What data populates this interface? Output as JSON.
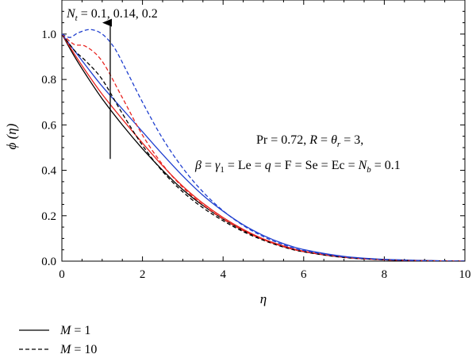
{
  "chart_data": {
    "type": "line",
    "xlabel": "η",
    "ylabel": "ϕ (η)",
    "xlim": [
      0,
      10
    ],
    "ylim": [
      0,
      1.15
    ],
    "x_ticks": [
      0,
      2,
      4,
      6,
      8,
      10
    ],
    "y_ticks": [
      0.0,
      0.2,
      0.4,
      0.6,
      0.8,
      1.0
    ],
    "x_tick_labels": [
      "0",
      "2",
      "4",
      "6",
      "8",
      "10"
    ],
    "y_tick_labels": [
      "0.0",
      "0.2",
      "0.4",
      "0.6",
      "0.8",
      "1.0"
    ],
    "grid": false,
    "annotations": {
      "nt_symbol": "N",
      "nt_sub": "t",
      "nt_values": " = 0.1, 0.14, 0.2",
      "params_line1_a": "Pr = 0.72, ",
      "params_line1_R": "R",
      "params_line1_b": " = ",
      "params_line1_theta": "θ",
      "params_line1_r": "r",
      "params_line1_c": " = 3,",
      "params_line2_beta": "β",
      "params_line2_a": " = ",
      "params_line2_gamma": "γ",
      "params_line2_gsub": "1",
      "params_line2_b": " = Le = ",
      "params_line2_q": "q",
      "params_line2_c": " = F = Se = Ec = ",
      "params_line2_N": "N",
      "params_line2_bsub": "b",
      "params_line2_d": " = 0.1",
      "arrow": {
        "x": 1.2,
        "y_start": 0.45,
        "y_end": 1.05
      }
    },
    "legend": {
      "placement": "below",
      "entries": [
        {
          "label_symbol": "M",
          "label_value": " = 1",
          "style": "solid"
        },
        {
          "label_symbol": "M",
          "label_value": " = 10",
          "style": "dashed"
        }
      ]
    },
    "series": [
      {
        "color": "#000000",
        "style": "solid",
        "x": [
          0,
          0.3,
          0.6,
          1,
          1.5,
          2,
          2.5,
          3,
          3.5,
          4,
          4.5,
          5,
          5.5,
          6,
          7,
          8,
          9,
          10
        ],
        "y": [
          1.0,
          0.905,
          0.82,
          0.715,
          0.6,
          0.495,
          0.4,
          0.315,
          0.245,
          0.185,
          0.135,
          0.095,
          0.064,
          0.042,
          0.017,
          0.006,
          0.002,
          0.0
        ]
      },
      {
        "color": "#e8231f",
        "style": "solid",
        "x": [
          0,
          0.3,
          0.6,
          1,
          1.5,
          2,
          2.5,
          3,
          3.5,
          4,
          4.5,
          5,
          5.5,
          6,
          7,
          8,
          9,
          10
        ],
        "y": [
          1.0,
          0.915,
          0.835,
          0.735,
          0.625,
          0.52,
          0.42,
          0.33,
          0.255,
          0.192,
          0.14,
          0.098,
          0.067,
          0.044,
          0.018,
          0.006,
          0.002,
          0.0
        ]
      },
      {
        "color": "#1f3fcf",
        "style": "solid",
        "x": [
          0,
          0.3,
          0.6,
          1,
          1.5,
          2,
          2.5,
          3,
          3.5,
          4,
          4.5,
          5,
          5.5,
          6,
          7,
          8,
          9,
          10
        ],
        "y": [
          1.0,
          0.93,
          0.86,
          0.77,
          0.67,
          0.57,
          0.47,
          0.375,
          0.29,
          0.22,
          0.16,
          0.113,
          0.077,
          0.051,
          0.021,
          0.008,
          0.003,
          0.0
        ]
      },
      {
        "color": "#000000",
        "style": "dashed",
        "x": [
          0,
          0.3,
          0.6,
          1,
          1.5,
          2,
          2.5,
          3,
          3.5,
          4,
          4.5,
          5,
          5.5,
          6,
          7,
          8,
          9,
          10
        ],
        "y": [
          1.0,
          0.93,
          0.88,
          0.8,
          0.65,
          0.51,
          0.395,
          0.305,
          0.235,
          0.178,
          0.13,
          0.092,
          0.062,
          0.041,
          0.016,
          0.006,
          0.002,
          0.0
        ]
      },
      {
        "color": "#e8231f",
        "style": "dashed",
        "x": [
          0,
          0.3,
          0.6,
          1,
          1.5,
          2,
          2.5,
          3,
          3.5,
          4,
          4.5,
          5,
          5.5,
          6,
          7,
          8,
          9,
          10
        ],
        "y": [
          1.0,
          0.955,
          0.945,
          0.88,
          0.72,
          0.555,
          0.425,
          0.325,
          0.248,
          0.186,
          0.135,
          0.095,
          0.064,
          0.042,
          0.017,
          0.006,
          0.002,
          0.0
        ]
      },
      {
        "color": "#1f3fcf",
        "style": "dashed",
        "x": [
          0,
          0.2,
          0.4,
          0.7,
          1,
          1.3,
          1.6,
          2,
          2.5,
          3,
          3.5,
          4,
          4.5,
          5,
          5.5,
          6,
          7,
          8,
          9,
          10
        ],
        "y": [
          1.0,
          0.985,
          1.005,
          1.02,
          1.0,
          0.94,
          0.84,
          0.7,
          0.54,
          0.41,
          0.305,
          0.222,
          0.157,
          0.108,
          0.072,
          0.047,
          0.019,
          0.007,
          0.002,
          0.0
        ]
      }
    ]
  }
}
